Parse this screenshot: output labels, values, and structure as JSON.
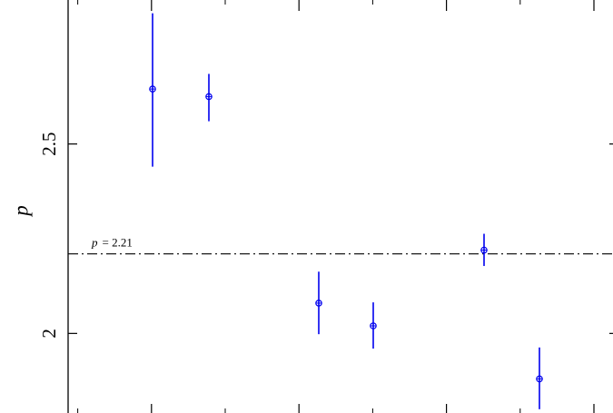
{
  "chart_data": {
    "type": "scatter",
    "ylabel": "p",
    "xlabel": "",
    "title": "",
    "ylim": [
      1.79,
      2.88
    ],
    "xlim": [
      0,
      10
    ],
    "y_ticks": [
      {
        "value": 2,
        "label": "2"
      },
      {
        "value": 2.5,
        "label": "2.5"
      }
    ],
    "x_major_ticks": [
      1.5,
      3.5,
      5.5,
      7.5,
      9.5
    ],
    "x_minor_ticks": [
      0.5,
      2.5,
      4.5,
      6.5,
      8.5
    ],
    "reference_line": {
      "y": 2.21,
      "label_prefix": "p",
      "label_suffix": "= 2.21",
      "style": "dash-dot"
    },
    "points": [
      {
        "x": 1.5,
        "y": 2.645,
        "ylow": 2.44,
        "yhigh": 2.845
      },
      {
        "x": 2.5,
        "y": 2.625,
        "ylow": 2.56,
        "yhigh": 2.685
      },
      {
        "x": 4.5,
        "y": 2.08,
        "ylow": 1.998,
        "yhigh": 2.163
      },
      {
        "x": 5.5,
        "y": 2.02,
        "ylow": 1.96,
        "yhigh": 2.082
      },
      {
        "x": 7.5,
        "y": 2.22,
        "ylow": 2.178,
        "yhigh": 2.263
      },
      {
        "x": 8.5,
        "y": 1.88,
        "ylow": 1.8,
        "yhigh": 1.963
      }
    ],
    "colors": {
      "points": "#0000ee",
      "axes": "#000000",
      "reference": "#000000"
    }
  }
}
